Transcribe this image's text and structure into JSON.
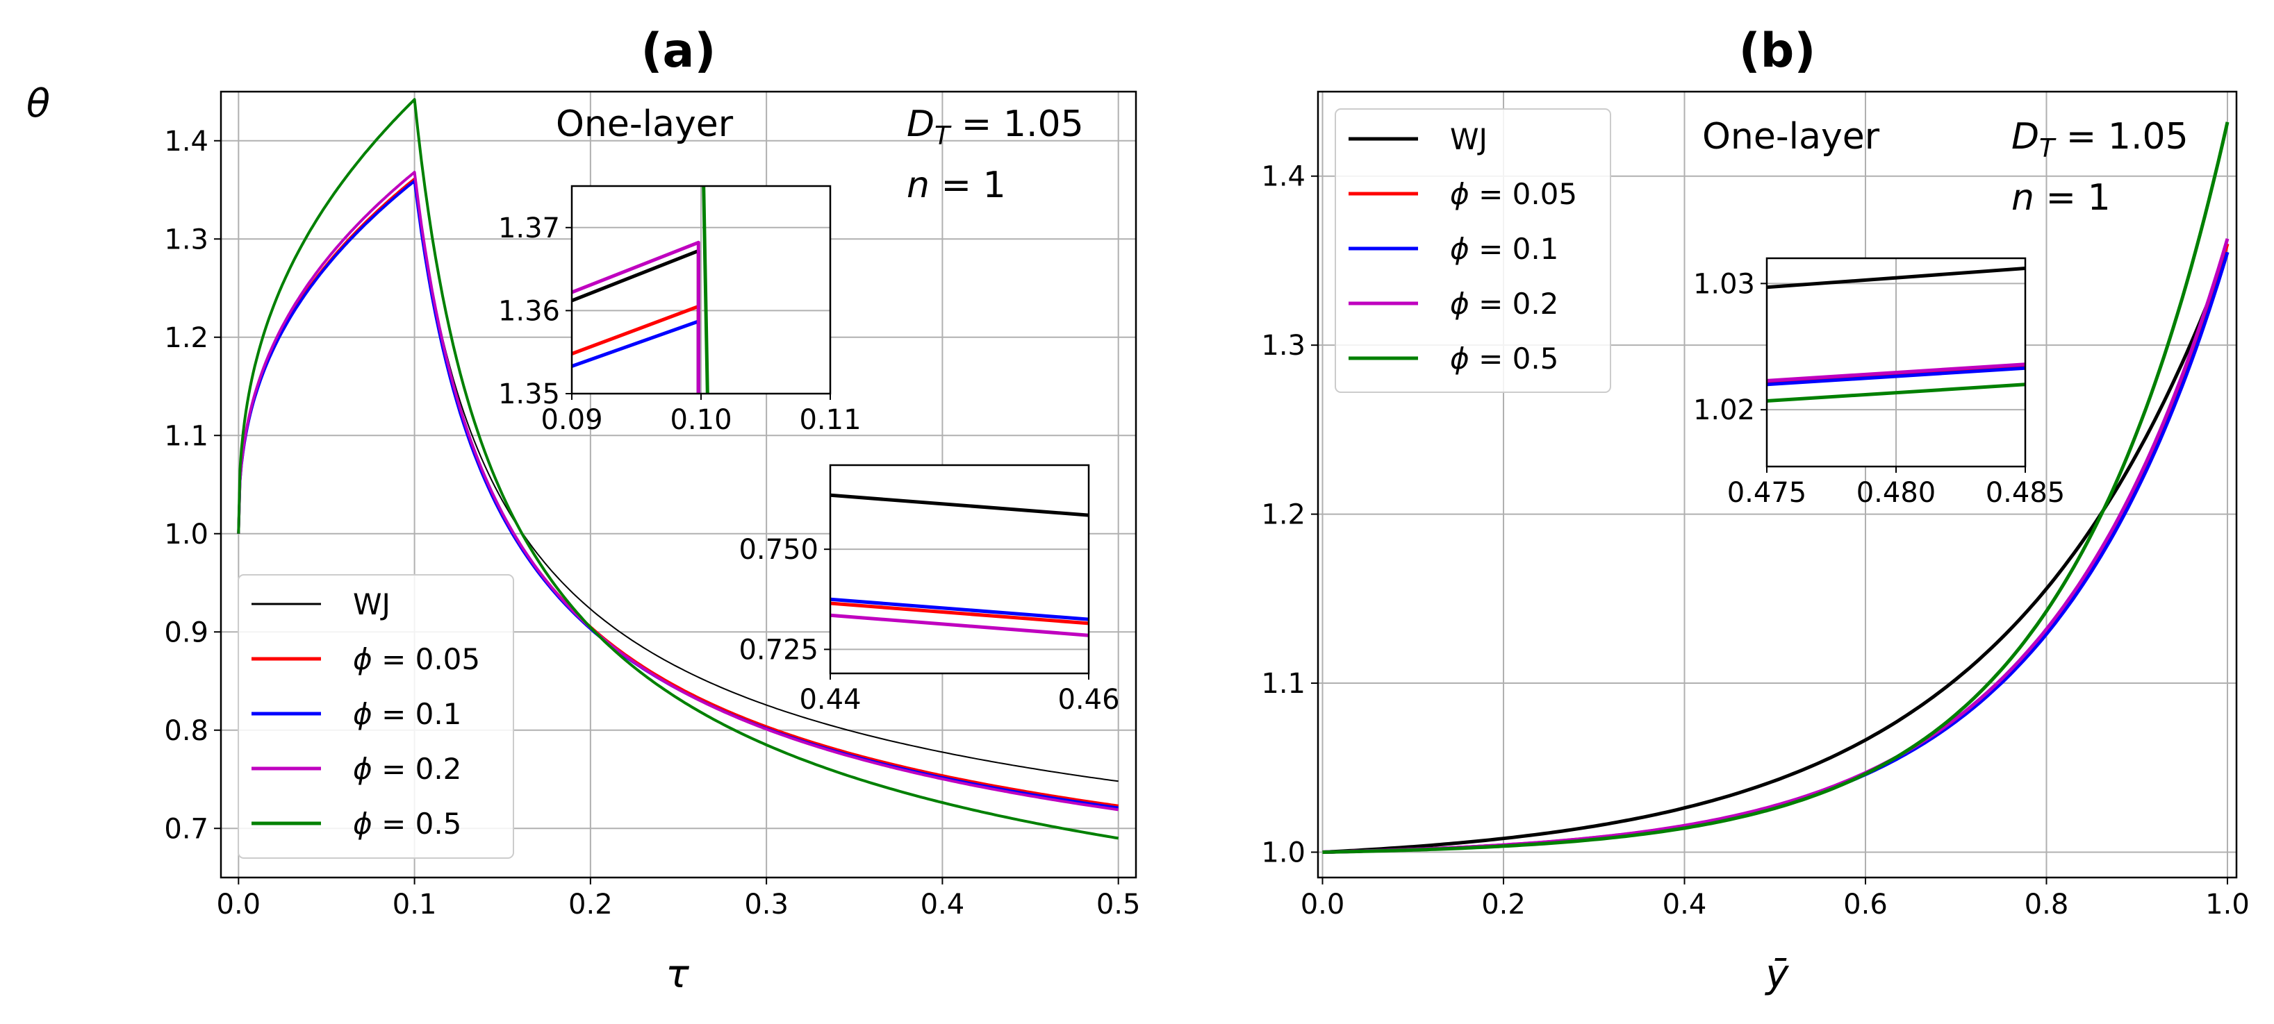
{
  "colors": {
    "wj": "#000000",
    "phi005": "#ff0000",
    "phi01": "#0000ff",
    "phi02": "#bf00bf",
    "phi05": "#008000",
    "grid": "#b0b0b0"
  },
  "legend": [
    "WJ",
    "ϕ = 0.05",
    "ϕ = 0.1",
    "ϕ = 0.2",
    "ϕ = 0.5"
  ],
  "chart_data": [
    {
      "id": "a",
      "type": "line",
      "title": "(a)",
      "xlabel": "τ",
      "ylabel": "θ",
      "xlim": [
        -0.01,
        0.51
      ],
      "ylim": [
        0.65,
        1.45
      ],
      "xticks": [
        0.0,
        0.1,
        0.2,
        0.3,
        0.4,
        0.5
      ],
      "xtick_labels": [
        "0.0",
        "0.1",
        "0.2",
        "0.3",
        "0.4",
        "0.5"
      ],
      "yticks": [
        0.7,
        0.8,
        0.9,
        1.0,
        1.1,
        1.2,
        1.3,
        1.4
      ],
      "ytick_labels": [
        "0.7",
        "0.8",
        "0.9",
        "1.0",
        "1.1",
        "1.2",
        "1.3",
        "1.4"
      ],
      "annotations": {
        "label": "One-layer",
        "dt": "D_T = 1.05",
        "n": "n = 1"
      },
      "legend_position": "lower-left",
      "series": [
        {
          "name": "WJ",
          "peak": 1.362,
          "end": 0.748,
          "width": 2
        },
        {
          "name": "ϕ = 0.05",
          "peak": 1.361,
          "end": 0.723,
          "width": 4
        },
        {
          "name": "ϕ = 0.1",
          "peak": 1.359,
          "end": 0.721,
          "width": 4
        },
        {
          "name": "ϕ = 0.2",
          "peak": 1.368,
          "end": 0.719,
          "width": 4
        },
        {
          "name": "ϕ = 0.5",
          "peak": 1.442,
          "end": 0.69,
          "width": 4
        }
      ],
      "insets": [
        {
          "xlim": [
            0.09,
            0.11
          ],
          "ylim": [
            1.35,
            1.375
          ],
          "xticks": [
            0.09,
            0.1,
            0.11
          ],
          "xtick_labels": [
            "0.09",
            "0.10",
            "0.11"
          ],
          "yticks": [
            1.35,
            1.36,
            1.37
          ],
          "ytick_labels": [
            "1.35",
            "1.36",
            "1.37"
          ],
          "lines": [
            {
              "name": "WJ",
              "x": [
                0.09,
                0.0998
              ],
              "y": [
                1.3612,
                1.3672
              ]
            },
            {
              "name": "ϕ = 0.05",
              "x": [
                0.09,
                0.0998
              ],
              "y": [
                1.3548,
                1.3605
              ]
            },
            {
              "name": "ϕ = 0.1",
              "x": [
                0.09,
                0.0998
              ],
              "y": [
                1.3533,
                1.3587
              ]
            },
            {
              "name": "ϕ = 0.2",
              "x": [
                0.09,
                0.0998
              ],
              "y": [
                1.3622,
                1.3682
              ]
            },
            {
              "name": "ϕ = 0.5",
              "x": [
                0.1005,
                0.1002
              ],
              "y": [
                1.35,
                1.375
              ]
            }
          ]
        },
        {
          "xlim": [
            0.44,
            0.46
          ],
          "ylim": [
            0.719,
            0.771
          ],
          "xticks": [
            0.44,
            0.46
          ],
          "xtick_labels": [
            "0.44",
            "0.46"
          ],
          "yticks": [
            0.725,
            0.75
          ],
          "ytick_labels": [
            "0.725",
            "0.750"
          ],
          "lines": [
            {
              "name": "WJ",
              "x": [
                0.44,
                0.46
              ],
              "y": [
                0.7635,
                0.7585
              ]
            },
            {
              "name": "ϕ = 0.05",
              "x": [
                0.44,
                0.46
              ],
              "y": [
                0.7365,
                0.7315
              ]
            },
            {
              "name": "ϕ = 0.1",
              "x": [
                0.44,
                0.46
              ],
              "y": [
                0.7375,
                0.7325
              ]
            },
            {
              "name": "ϕ = 0.2",
              "x": [
                0.44,
                0.46
              ],
              "y": [
                0.7335,
                0.7285
              ]
            }
          ]
        }
      ]
    },
    {
      "id": "b",
      "type": "line",
      "title": "(b)",
      "xlabel": "ȳ",
      "xlim": [
        -0.005,
        1.01
      ],
      "ylim": [
        0.985,
        1.45
      ],
      "xticks": [
        0.0,
        0.2,
        0.4,
        0.6,
        0.8,
        1.0
      ],
      "xtick_labels": [
        "0.0",
        "0.2",
        "0.4",
        "0.6",
        "0.8",
        "1.0"
      ],
      "yticks": [
        1.0,
        1.1,
        1.2,
        1.3,
        1.4
      ],
      "ytick_labels": [
        "1.0",
        "1.1",
        "1.2",
        "1.3",
        "1.4"
      ],
      "annotations": {
        "label": "One-layer",
        "dt": "D_T = 1.05",
        "n": "n = 1"
      },
      "legend_position": "top-left",
      "series": [
        {
          "name": "WJ",
          "end": 1.355,
          "k": 4.0
        },
        {
          "name": "ϕ = 0.05",
          "end": 1.36,
          "k": 5.0
        },
        {
          "name": "ϕ = 0.1",
          "end": 1.355,
          "k": 5.0
        },
        {
          "name": "ϕ = 0.2",
          "end": 1.363,
          "k": 5.0
        },
        {
          "name": "ϕ = 0.5",
          "end": 1.432,
          "k": 5.5
        }
      ],
      "inset": {
        "xlim": [
          0.475,
          0.485
        ],
        "ylim": [
          1.0155,
          1.032
        ],
        "xticks": [
          0.475,
          0.48,
          0.485
        ],
        "xtick_labels": [
          "0.475",
          "0.480",
          "0.485"
        ],
        "yticks": [
          1.02,
          1.03
        ],
        "ytick_labels": [
          "1.02",
          "1.03"
        ],
        "lines": [
          {
            "name": "WJ",
            "x": [
              0.475,
              0.485
            ],
            "y": [
              1.0297,
              1.0312
            ]
          },
          {
            "name": "ϕ = 0.05",
            "x": [
              0.475,
              0.485
            ],
            "y": [
              1.0222,
              1.0235
            ]
          },
          {
            "name": "ϕ = 0.1",
            "x": [
              0.475,
              0.485
            ],
            "y": [
              1.022,
              1.0233
            ]
          },
          {
            "name": "ϕ = 0.2",
            "x": [
              0.475,
              0.485
            ],
            "y": [
              1.0223,
              1.0236
            ]
          },
          {
            "name": "ϕ = 0.5",
            "x": [
              0.475,
              0.485
            ],
            "y": [
              1.0207,
              1.022
            ]
          }
        ]
      }
    }
  ]
}
